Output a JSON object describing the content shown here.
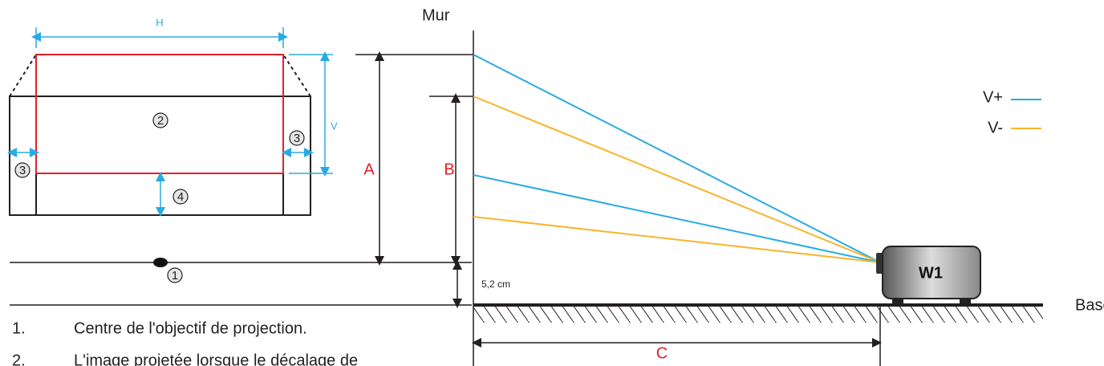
{
  "labels": {
    "wall": "Mur",
    "base": "Base",
    "h": "H",
    "v": "V",
    "a": "A",
    "b": "B",
    "c": "C",
    "offset": "5,2 cm",
    "projector": "W1"
  },
  "markers": [
    "1",
    "2",
    "3",
    "3",
    "4"
  ],
  "legend": [
    {
      "name": "V+",
      "color": "#29abe2"
    },
    {
      "name": "V-",
      "color": "#f7b52c"
    }
  ],
  "notes": [
    {
      "number": "1.",
      "text": "Centre de l'objectif de projection."
    },
    {
      "number": "2.",
      "text": "L'image projetée lorsque le décalage de"
    }
  ]
}
